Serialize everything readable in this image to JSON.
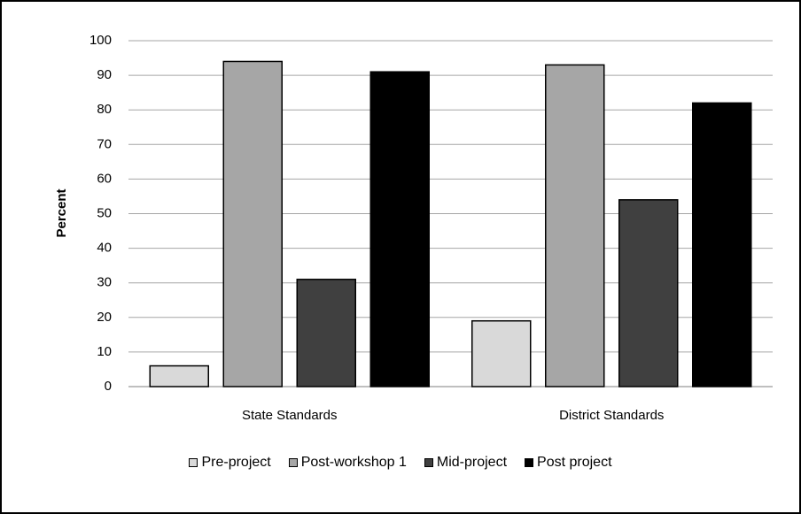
{
  "chart_data": {
    "type": "bar",
    "title": "",
    "xlabel": "",
    "ylabel": "Percent",
    "ylim": [
      0,
      100
    ],
    "yticks": [
      0,
      10,
      20,
      30,
      40,
      50,
      60,
      70,
      80,
      90,
      100
    ],
    "grid": true,
    "legend_position": "bottom",
    "categories": [
      "State Standards",
      "District Standards"
    ],
    "series": [
      {
        "name": "Pre-project",
        "values": [
          6,
          19
        ],
        "color": "#d9d9d9"
      },
      {
        "name": "Post-workshop 1",
        "values": [
          94,
          93
        ],
        "color": "#a6a6a6"
      },
      {
        "name": "Mid-project",
        "values": [
          31,
          54
        ],
        "color": "#404040"
      },
      {
        "name": "Post project",
        "values": [
          91,
          82
        ],
        "color": "#000000"
      }
    ]
  }
}
